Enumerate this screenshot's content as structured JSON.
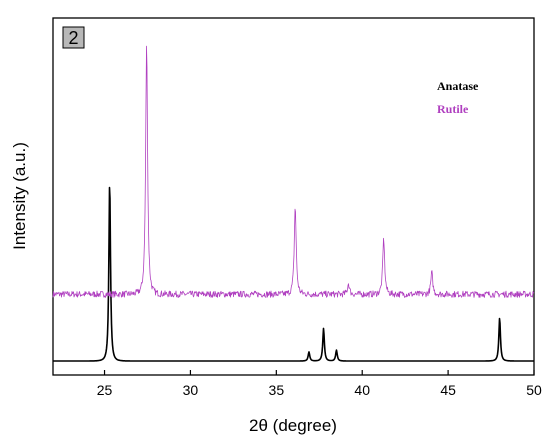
{
  "chart_data": {
    "type": "line",
    "panel_label": "2",
    "xlabel": "2θ (degree)",
    "ylabel": "Intensity (a.u.)",
    "xlim": [
      22,
      50
    ],
    "x_ticks": [
      25,
      30,
      35,
      40,
      45,
      50
    ],
    "x_tick_labels": [
      "25",
      "30",
      "35",
      "40",
      "45",
      "50"
    ],
    "y_ticks_labels": "none",
    "grid": false,
    "legend_placement": "top-right",
    "series": [
      {
        "name": "Anatase",
        "color": "#000000",
        "baseline": 0.0,
        "noise": false,
        "peaks": [
          {
            "x": 25.3,
            "height": 1.0
          },
          {
            "x": 36.9,
            "height": 0.05
          },
          {
            "x": 37.75,
            "height": 0.18
          },
          {
            "x": 38.5,
            "height": 0.06
          },
          {
            "x": 48.0,
            "height": 0.24
          }
        ]
      },
      {
        "name": "Rutile",
        "color": "#b040c0",
        "baseline": 0.365,
        "noise": true,
        "peaks": [
          {
            "x": 27.45,
            "height": 1.39
          },
          {
            "x": 36.1,
            "height": 0.49
          },
          {
            "x": 39.2,
            "height": 0.06
          },
          {
            "x": 41.25,
            "height": 0.31
          },
          {
            "x": 44.05,
            "height": 0.12
          }
        ]
      }
    ]
  }
}
